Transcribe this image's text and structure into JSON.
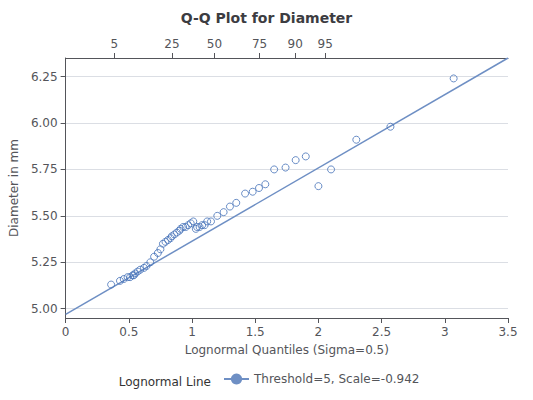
{
  "chart_data": {
    "type": "scatter",
    "title": "Q-Q Plot for Diameter",
    "xlabel": "Lognormal Quantiles (Sigma=0.5)",
    "ylabel": "Diameter in mm",
    "xlim": [
      0,
      3.5
    ],
    "ylim": [
      4.95,
      6.35
    ],
    "xticks": [
      0,
      0.5,
      1.0,
      1.5,
      2.0,
      2.5,
      3.0,
      3.5
    ],
    "yticks": [
      {
        "value": 5.0,
        "label": "5.00"
      },
      {
        "value": 5.25,
        "label": "5.25"
      },
      {
        "value": 5.5,
        "label": "5.50"
      },
      {
        "value": 5.75,
        "label": "5.75"
      },
      {
        "value": 6.0,
        "label": "6.00"
      },
      {
        "value": 6.25,
        "label": "6.25"
      }
    ],
    "x2lim": [
      0,
      3.5
    ],
    "x2ticks": [
      {
        "value": 0.3854,
        "label": "5"
      },
      {
        "value": 0.8416,
        "label": "25"
      },
      {
        "value": 1.1774,
        "label": "50"
      },
      {
        "value": 1.5341,
        "label": "75"
      },
      {
        "value": 1.8165,
        "label": "90"
      },
      {
        "value": 2.0537,
        "label": "95"
      }
    ],
    "grid": "y",
    "legend": "bottom",
    "legend_title": "Lognormal Line",
    "series": [
      {
        "type": "scatter",
        "marker": "open_circle",
        "color": "#4470b8",
        "x": [
          0.36,
          0.43,
          0.46,
          0.49,
          0.51,
          0.53,
          0.54,
          0.55,
          0.57,
          0.59,
          0.62,
          0.64,
          0.67,
          0.7,
          0.73,
          0.75,
          0.77,
          0.79,
          0.81,
          0.83,
          0.84,
          0.86,
          0.88,
          0.9,
          0.91,
          0.93,
          0.95,
          0.97,
          0.99,
          1.01,
          1.03,
          1.04,
          1.06,
          1.08,
          1.1,
          1.12,
          1.15,
          1.2,
          1.25,
          1.3,
          1.35,
          1.42,
          1.48,
          1.53,
          1.58,
          1.65,
          1.74,
          1.82,
          1.9,
          2.0,
          2.1,
          2.3,
          2.57,
          3.07
        ],
        "values": [
          5.13,
          5.15,
          5.16,
          5.17,
          5.17,
          5.18,
          5.18,
          5.19,
          5.2,
          5.21,
          5.22,
          5.23,
          5.25,
          5.28,
          5.3,
          5.32,
          5.35,
          5.36,
          5.37,
          5.38,
          5.39,
          5.4,
          5.41,
          5.42,
          5.43,
          5.44,
          5.44,
          5.45,
          5.46,
          5.47,
          5.43,
          5.44,
          5.44,
          5.45,
          5.45,
          5.47,
          5.47,
          5.5,
          5.52,
          5.55,
          5.57,
          5.62,
          5.63,
          5.65,
          5.67,
          5.75,
          5.76,
          5.8,
          5.82,
          5.66,
          5.75,
          5.91,
          5.98,
          6.24
        ]
      },
      {
        "name": "Threshold=5, Scale=-0.942",
        "type": "line",
        "color": "#6e8fc4",
        "x": [
          0.0,
          3.5
        ],
        "values": [
          4.969,
          6.35
        ]
      }
    ]
  }
}
